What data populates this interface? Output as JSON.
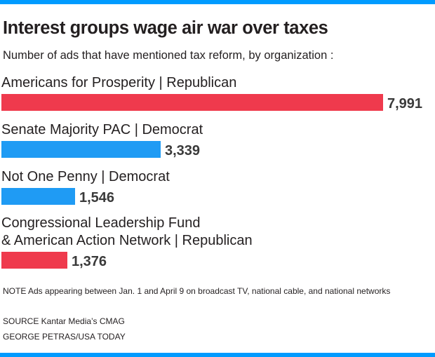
{
  "title": "Interest groups wage air war over taxes",
  "subtitle": "Number of ads that have mentioned tax reform, by organization :",
  "colors": {
    "republican": "#ef3a4d",
    "democrat": "#1f9bf4",
    "accent_bar": "#009bff"
  },
  "chart_data": {
    "type": "bar",
    "orientation": "horizontal",
    "categories": [
      [
        "Americans for Prosperity | Republican"
      ],
      [
        "Senate Majority PAC | Democrat"
      ],
      [
        "Not One Penny | Democrat"
      ],
      [
        "Congressional Leadership Fund",
        "& American Action Network | Republican"
      ]
    ],
    "values": [
      7991,
      3339,
      1546,
      1376
    ],
    "value_labels": [
      "7,991",
      "3,339",
      "1,546",
      "1,376"
    ],
    "bar_party": [
      "republican",
      "democrat",
      "democrat",
      "republican"
    ],
    "xlim": [
      0,
      7991
    ],
    "grid": false,
    "legend": "none"
  },
  "notes": {
    "note": "NOTE Ads appearing between Jan. 1 and April 9 on broadcast TV, national cable, and national networks",
    "source": "SOURCE Kantar Media’s CMAG",
    "credit": "GEORGE PETRAS/USA TODAY"
  }
}
